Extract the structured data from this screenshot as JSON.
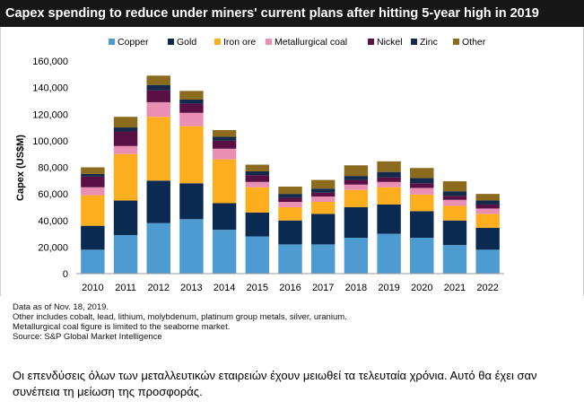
{
  "chart_data": {
    "type": "bar",
    "stacked": true,
    "title": "Capex spending to reduce under miners' current plans after hitting 5-year high in 2019",
    "xlabel": "",
    "ylabel": "Capex (US$M)",
    "ylim": [
      0,
      160000
    ],
    "yticks": [
      0,
      20000,
      40000,
      60000,
      80000,
      100000,
      120000,
      140000,
      160000
    ],
    "ytick_labels": [
      "0",
      "20,000",
      "40,000",
      "60,000",
      "80,000",
      "100,000",
      "120,000",
      "140,000",
      "160,000"
    ],
    "grid": false,
    "legend_position": "top",
    "categories": [
      "2010",
      "2011",
      "2012",
      "2013",
      "2014",
      "2015",
      "2016",
      "2017",
      "2018",
      "2019",
      "2020",
      "2021",
      "2022"
    ],
    "series": [
      {
        "name": "Copper",
        "color": "#4e9bd1",
        "values": [
          18000,
          29000,
          38000,
          41000,
          33000,
          28000,
          22000,
          22000,
          27000,
          30000,
          27000,
          21500,
          18000
        ]
      },
      {
        "name": "Gold",
        "color": "#0b2a52",
        "values": [
          18000,
          26000,
          32000,
          27000,
          20000,
          18000,
          18000,
          23000,
          23000,
          22000,
          20000,
          18500,
          16500
        ]
      },
      {
        "name": "Iron ore",
        "color": "#fcae1e",
        "values": [
          23000,
          35000,
          48000,
          43000,
          33000,
          19000,
          10000,
          9000,
          13000,
          13000,
          12500,
          11000,
          10500
        ]
      },
      {
        "name": "Metallurgical coal",
        "color": "#e98fb4",
        "values": [
          6000,
          6000,
          11000,
          10000,
          8000,
          4000,
          4000,
          4000,
          4000,
          4000,
          5000,
          4500,
          4000
        ]
      },
      {
        "name": "Nickel",
        "color": "#5a0f45",
        "values": [
          8000,
          11000,
          9000,
          7000,
          6000,
          5000,
          3000,
          3000,
          3500,
          3500,
          3500,
          3000,
          3000
        ]
      },
      {
        "name": "Zinc",
        "color": "#142a4a",
        "values": [
          2000,
          3000,
          4000,
          3000,
          3000,
          3000,
          3000,
          3000,
          3000,
          4000,
          4000,
          3500,
          3000
        ]
      },
      {
        "name": "Other",
        "color": "#8d6b1e",
        "values": [
          5000,
          8000,
          7000,
          6500,
          5000,
          5000,
          5500,
          6500,
          8000,
          8000,
          7500,
          7500,
          5000
        ]
      }
    ]
  },
  "notes": [
    "Data as of Nov. 18, 2019.",
    "Other includes cobalt, lead, lithium, molybdenum, platinum group metals, silver, uranium.",
    "Metallurgical coal figure is limited to the seaborne market.",
    "Source: S&P Global Market Intelligence"
  ],
  "caption": "Οι επενδύσεις όλων των μεταλλευτικών εταιρειών έχουν μειωθεί τα τελευταία χρόνια. Αυτό θα έχει σαν συνέπεια τη μείωση της προσφοράς."
}
